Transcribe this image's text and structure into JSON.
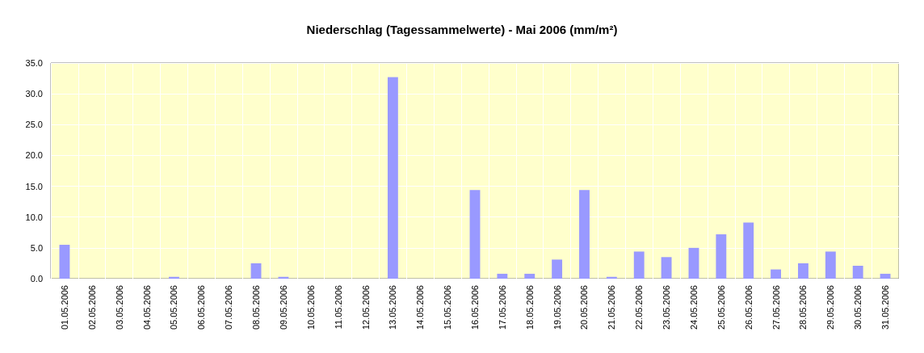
{
  "chart_data": {
    "type": "bar",
    "title": "Niederschlag (Tagessammelwerte) - Mai 2006 (mm/m²)",
    "categories": [
      "01.05.2006",
      "02.05.2006",
      "03.05.2006",
      "04.05.2006",
      "05.05.2006",
      "06.05.2006",
      "07.05.2006",
      "08.05.2006",
      "09.05.2006",
      "10.05.2006",
      "11.05.2006",
      "12.05.2006",
      "13.05.2006",
      "14.05.2006",
      "15.05.2006",
      "16.05.2006",
      "17.05.2006",
      "18.05.2006",
      "19.05.2006",
      "20.05.2006",
      "21.05.2006",
      "22.05.2006",
      "23.05.2006",
      "24.05.2006",
      "25.05.2006",
      "26.05.2006",
      "27.05.2006",
      "28.05.2006",
      "29.05.2006",
      "30.05.2006",
      "31.05.2006"
    ],
    "values": [
      5.5,
      0,
      0,
      0,
      0.3,
      0,
      0,
      2.5,
      0.3,
      0,
      0,
      0,
      32.7,
      0,
      0,
      14.4,
      0.8,
      0.8,
      3.1,
      14.4,
      0.3,
      4.4,
      3.5,
      5.0,
      7.2,
      9.1,
      1.5,
      2.5,
      4.4,
      2.1,
      0.8
    ],
    "color": "#9999ff",
    "ylim": [
      0,
      35
    ],
    "yticks": [
      {
        "value": 0,
        "label": "0.0"
      },
      {
        "value": 5,
        "label": "5.0"
      },
      {
        "value": 10,
        "label": "10.0"
      },
      {
        "value": 15,
        "label": "15.0"
      },
      {
        "value": 20,
        "label": "20.0"
      },
      {
        "value": 25,
        "label": "25.0"
      },
      {
        "value": 30,
        "label": "30.0"
      },
      {
        "value": 35,
        "label": "35.0"
      }
    ],
    "grid": true
  }
}
